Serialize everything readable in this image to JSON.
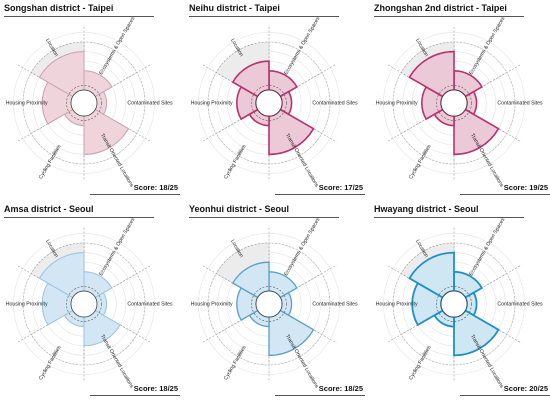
{
  "chart_data": [
    {
      "type": "radial-bar",
      "title": "Songshan district - Taipei",
      "score": "Score: 18/25",
      "max_value": 5,
      "categories": [
        "Ecosystems & Open Spaces",
        "Contaminated Sites",
        "Transit Oriented Locations",
        "Cycling Facilities",
        "Jobs & Housing Proximity",
        "Location"
      ],
      "values": [
        2,
        1,
        4,
        1,
        3,
        4
      ],
      "color": "#c9a0b0",
      "fill": "#f0d4dc",
      "stroke_width": 1
    },
    {
      "type": "radial-bar",
      "title": "Neihu district - Taipei",
      "score": "Score: 17/25",
      "max_value": 5,
      "categories": [
        "Ecosystems & Open Spaces",
        "Contaminated Sites",
        "Transit Oriented Locations",
        "Cycling Facilities",
        "Jobs & Housing Proximity",
        "Location"
      ],
      "values": [
        2,
        1,
        4,
        1,
        2,
        3
      ],
      "color": "#b8326f",
      "fill": "#ecc9d6",
      "stroke_width": 1.6
    },
    {
      "type": "radial-bar",
      "title": "Zhongshan 2nd district - Taipei",
      "score": "Score: 19/25",
      "max_value": 5,
      "categories": [
        "Ecosystems & Open Spaces",
        "Contaminated Sites",
        "Transit Oriented Locations",
        "Cycling Facilities",
        "Jobs & Housing Proximity",
        "Location"
      ],
      "values": [
        2,
        1,
        4,
        1,
        2,
        4
      ],
      "color": "#b8326f",
      "fill": "#ecc9d6",
      "stroke_width": 1.6
    },
    {
      "type": "radial-bar",
      "title": "Amsa district - Seoul",
      "score": "Score: 18/25",
      "max_value": 5,
      "categories": [
        "Ecosystems & Open Spaces",
        "Contaminated Sites",
        "Transit Oriented Locations",
        "Cycling Facilities",
        "Jobs & Housing Proximity",
        "Location"
      ],
      "values": [
        2,
        1,
        3,
        1,
        3,
        4
      ],
      "color": "#9ac3de",
      "fill": "#d2e6f3",
      "stroke_width": 1
    },
    {
      "type": "radial-bar",
      "title": "Yeonhui district - Seoul",
      "score": "Score: 18/25",
      "max_value": 5,
      "categories": [
        "Ecosystems & Open Spaces",
        "Contaminated Sites",
        "Transit Oriented Locations",
        "Cycling Facilities",
        "Jobs & Housing Proximity",
        "Location"
      ],
      "values": [
        2,
        1,
        4,
        1,
        2,
        3
      ],
      "color": "#5a9fcc",
      "fill": "#d2e6f3",
      "stroke_width": 1.3
    },
    {
      "type": "radial-bar",
      "title": "Hwayang district - Seoul",
      "score": "Score: 20/25",
      "max_value": 5,
      "categories": [
        "Ecosystems & Open Spaces",
        "Contaminated Sites",
        "Transit Oriented Locations",
        "Cycling Facilities",
        "Jobs & Housing Proximity",
        "Location"
      ],
      "values": [
        2,
        1,
        4,
        1,
        3,
        4
      ],
      "color": "#1f8fc8",
      "fill": "#cfe6f3",
      "stroke_width": 1.8
    }
  ]
}
